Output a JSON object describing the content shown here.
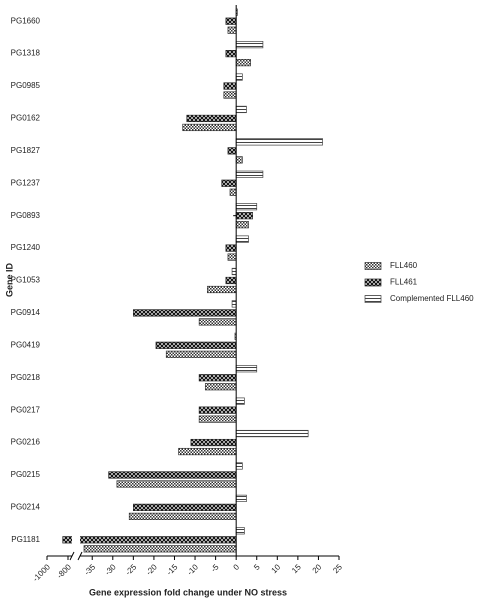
{
  "chart_data": {
    "type": "hbar",
    "x_label": "Gene expression fold change under NO stress",
    "y_label": "Gene ID",
    "categories": [
      "PG1660",
      "PG1318",
      "PG0985",
      "PG0162",
      "PG1827",
      "PG1237",
      "PG0893",
      "PG1240",
      "PG1053",
      "PG0914",
      "PG0419",
      "PG0218",
      "PG0217",
      "PG0216",
      "PG0215",
      "PG0214",
      "PG1181"
    ],
    "series": [
      {
        "name": "FLL460",
        "pattern": "dots",
        "color": "#333333",
        "values": [
          -2,
          3.5,
          -3,
          -13,
          1.5,
          -1.5,
          3,
          -2,
          -7,
          -9,
          -17,
          -7.5,
          -9,
          -14,
          -29,
          -26,
          -37
        ]
      },
      {
        "name": "FLL461",
        "pattern": "cross",
        "color": "#222222",
        "values": [
          -2.5,
          -2.5,
          -3,
          -12,
          -2,
          -3.5,
          4,
          -2.5,
          -2.5,
          -25,
          -19.5,
          -9,
          -9,
          -11,
          -31,
          -25,
          -850
        ]
      },
      {
        "name": "Complemented FLL460",
        "pattern": "lines",
        "color": "#444444",
        "values": [
          0.3,
          6.5,
          1.5,
          2.5,
          21,
          6.5,
          5,
          3,
          -1,
          -1,
          -0.3,
          5,
          2,
          17.5,
          1.5,
          2.5,
          2
        ]
      }
    ],
    "xlim": [
      -1000,
      25
    ],
    "x_break": [
      -800,
      -37
    ],
    "xticks": [
      -1000,
      -800,
      -35,
      -30,
      -25,
      -20,
      -15,
      -10,
      -5,
      0,
      5,
      10,
      15,
      20,
      25
    ],
    "legend": "right"
  }
}
